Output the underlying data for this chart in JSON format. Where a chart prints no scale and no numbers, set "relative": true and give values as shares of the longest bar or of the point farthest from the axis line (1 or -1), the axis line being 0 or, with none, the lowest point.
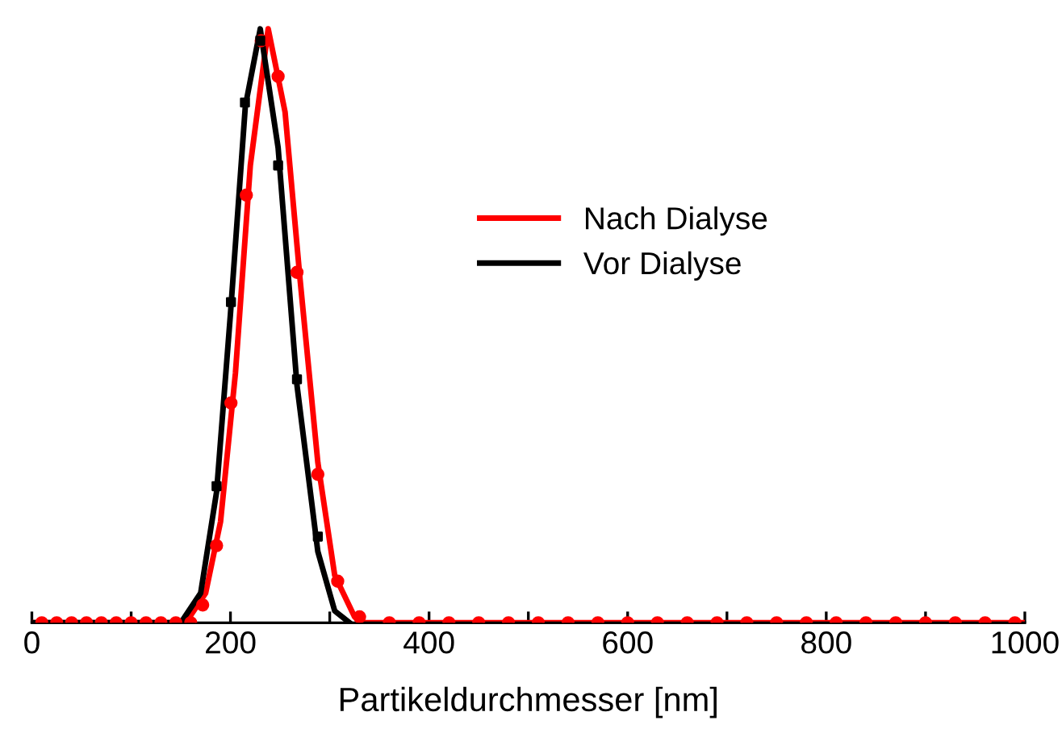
{
  "chart_data": {
    "type": "line",
    "xlabel": "Partikeldurchmesser [nm]",
    "relative": true,
    "xlim": [
      0,
      1000
    ],
    "xticks": [
      0,
      {
        "value": 100,
        "label": null
      },
      200,
      {
        "value": 300,
        "label": null
      },
      400,
      {
        "value": 500,
        "label": null
      },
      600,
      {
        "value": 700,
        "label": null
      },
      800,
      {
        "value": 900,
        "label": null
      },
      1000
    ],
    "legend": "right",
    "grid": false,
    "series": [
      {
        "name": "Nach Dialyse",
        "color": "#ff0000",
        "marker": "none",
        "x": [
          0,
          155,
          175,
          190,
          205,
          220,
          238,
          255,
          270,
          288,
          305,
          325,
          335,
          1000
        ],
        "values": [
          0,
          0,
          0.05,
          0.17,
          0.42,
          0.77,
          1.0,
          0.86,
          0.58,
          0.27,
          0.08,
          0.01,
          0,
          0
        ]
      },
      {
        "name": "Vor Dialyse",
        "color": "#000000",
        "marker": "none",
        "x": [
          0,
          150,
          170,
          186,
          200,
          215,
          230,
          248,
          267,
          288,
          305,
          320
        ],
        "values": [
          0,
          0,
          0.05,
          0.22,
          0.52,
          0.87,
          1.0,
          0.8,
          0.4,
          0.12,
          0.02,
          0
        ]
      },
      {
        "color": "#ff0000",
        "type": "scatter",
        "marker": "circle",
        "x": [
          10,
          25,
          40,
          55,
          70,
          85,
          100,
          115,
          130,
          145,
          160,
          172,
          186,
          200.5,
          216,
          231,
          248,
          267,
          288,
          308,
          330,
          360,
          390,
          420,
          450,
          480,
          510,
          540,
          570,
          600,
          630,
          660,
          690,
          720,
          750,
          780,
          810,
          840,
          870,
          900,
          930,
          960,
          990
        ],
        "values": [
          0,
          0,
          0,
          0,
          0,
          0,
          0,
          0,
          0,
          0,
          0,
          0.03,
          0.13,
          0.37,
          0.72,
          0.98,
          0.92,
          0.59,
          0.25,
          0.07,
          0.01,
          0,
          0,
          0,
          0,
          0,
          0,
          0,
          0,
          0,
          0,
          0,
          0,
          0,
          0,
          0,
          0,
          0,
          0,
          0,
          0,
          0,
          0
        ]
      },
      {
        "color": "#000000",
        "type": "scatter",
        "marker": "square",
        "x": [
          186,
          200.5,
          214.6,
          230,
          248,
          267,
          288
        ],
        "values": [
          0.23,
          0.54,
          0.876,
          0.98,
          0.77,
          0.41,
          0.145
        ]
      }
    ]
  }
}
